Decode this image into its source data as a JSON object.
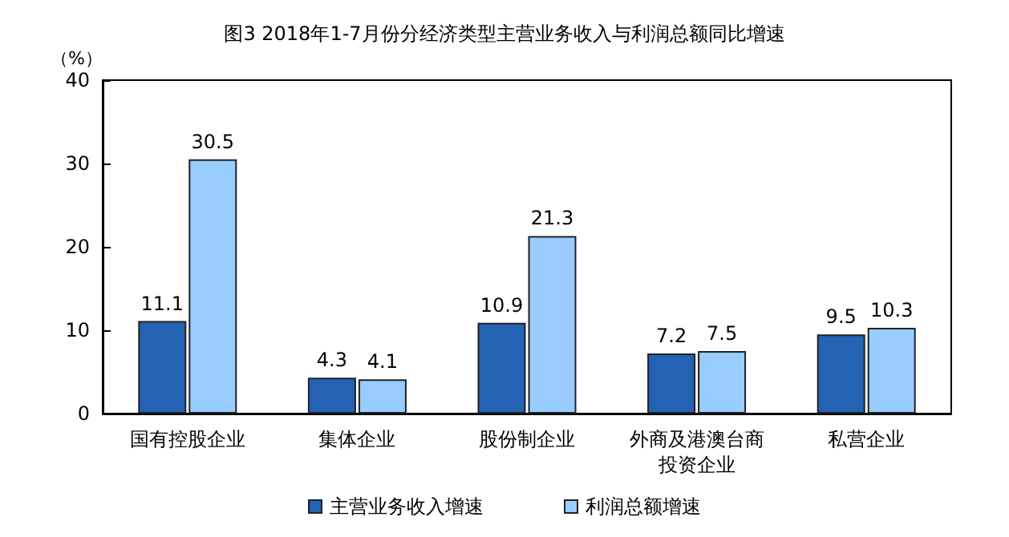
{
  "chart_data": {
    "type": "bar",
    "title": "图3 2018年1-7月份分经济类型主营业务收入与利润总额同比增速",
    "ylabel": "（%）",
    "categories": [
      "国有控股企业",
      "集体企业",
      "股份制企业",
      "外商及港澳台商投资企业",
      "私营企业"
    ],
    "series": [
      {
        "name": "主营业务收入增速",
        "color": "#2462b4",
        "values": [
          11.1,
          4.3,
          10.9,
          7.2,
          9.5
        ]
      },
      {
        "name": "利润总额增速",
        "color": "#99ccff",
        "values": [
          30.5,
          4.1,
          21.3,
          7.5,
          10.3
        ]
      }
    ],
    "ylim": [
      0,
      40
    ],
    "yticks": [
      0,
      10,
      20,
      30,
      40
    ],
    "grid": false,
    "legend": "bottom",
    "data_labels": true
  }
}
